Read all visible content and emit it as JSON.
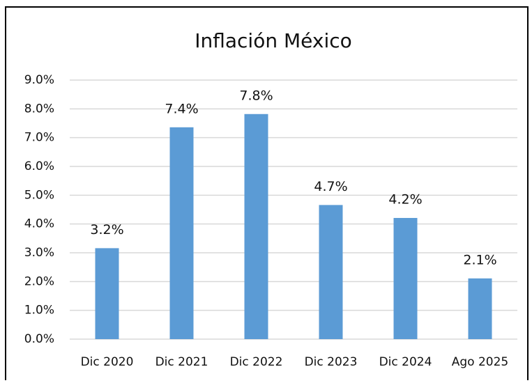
{
  "chart_data": {
    "type": "bar",
    "title": "Inflación México",
    "categories": [
      "Dic 2020",
      "Dic 2021",
      "Dic 2022",
      "Dic 2023",
      "Dic 2024",
      "Ago 2025"
    ],
    "values": [
      3.16,
      7.36,
      7.82,
      4.66,
      4.21,
      2.11
    ],
    "value_labels": [
      "3.2%",
      "7.4%",
      "7.8%",
      "4.7%",
      "4.2%",
      "2.1%"
    ],
    "color": "#5b9bd5",
    "ylim": [
      0,
      9
    ],
    "yticks": [
      {
        "value": 0,
        "label": "0.0%"
      },
      {
        "value": 1,
        "label": "1.0%"
      },
      {
        "value": 2,
        "label": "2.0%"
      },
      {
        "value": 3,
        "label": "3.0%"
      },
      {
        "value": 4,
        "label": "4.0%"
      },
      {
        "value": 5,
        "label": "5.0%"
      },
      {
        "value": 6,
        "label": "6.0%"
      },
      {
        "value": 7,
        "label": "7.0%"
      },
      {
        "value": 8,
        "label": "8.0%"
      },
      {
        "value": 9,
        "label": "9.0%"
      }
    ],
    "grid": true
  }
}
